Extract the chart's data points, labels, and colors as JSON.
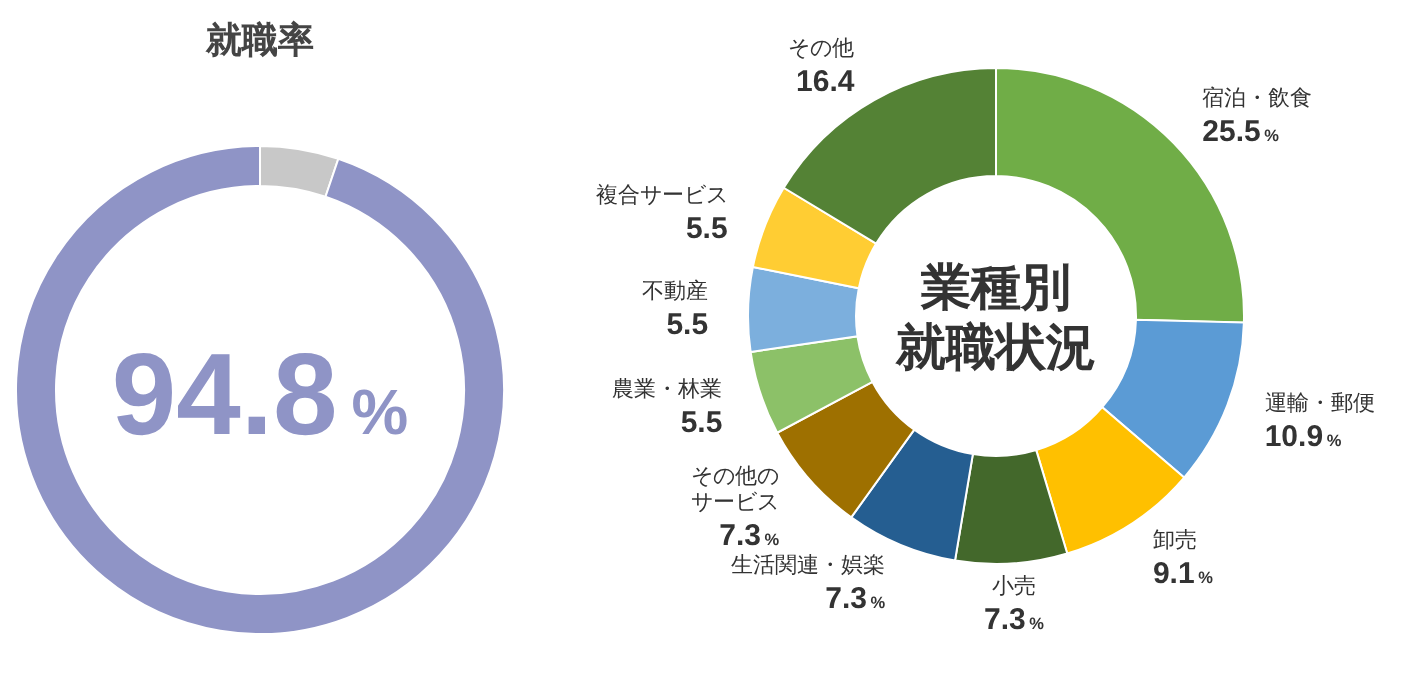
{
  "chart_data": [
    {
      "type": "donut",
      "title": "就職率",
      "categories": [
        null,
        null
      ],
      "values": [
        5.2,
        94.8
      ],
      "colors": [
        "#c8c8c8",
        "#8f94c6"
      ],
      "value_labels": [
        null,
        "94.8%"
      ]
    },
    {
      "type": "donut",
      "title": "業種別就職状況",
      "categories": [
        "宿泊・飲食",
        "運輸・郵便",
        "卸売",
        "小売",
        "生活関連・娯楽",
        "その他のサービス",
        "農業・林業",
        "不動産",
        "複合サービス",
        "その他"
      ],
      "values": [
        25.5,
        10.9,
        9.1,
        7.3,
        7.3,
        7.3,
        5.5,
        5.5,
        5.5,
        16.4
      ],
      "colors": [
        "#70ad47",
        "#5b9bd5",
        "#ffc000",
        "#43682b",
        "#255e91",
        "#9e7000",
        "#8cc168",
        "#7cafdd",
        "#ffcd33",
        "#548235"
      ],
      "value_labels": [
        "25.5%",
        "10.9%",
        "9.1%",
        "7.3%",
        "7.3%",
        "7.3%",
        "5.5",
        "5.5",
        "5.5",
        "16.4"
      ]
    }
  ]
}
